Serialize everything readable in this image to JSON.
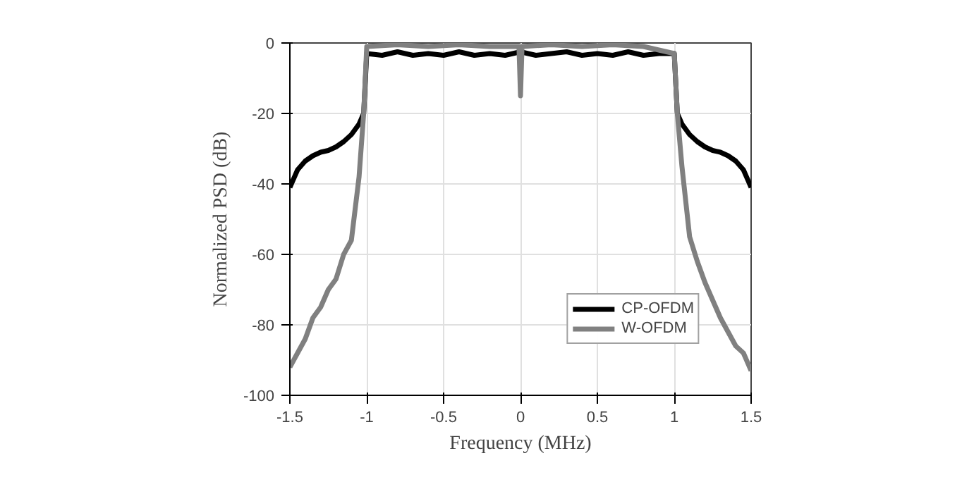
{
  "chart_data": {
    "type": "line",
    "xlabel": "Frequency (MHz)",
    "ylabel": "Normalized PSD (dB)",
    "xlim": [
      -1.5,
      1.5
    ],
    "ylim": [
      -100,
      0
    ],
    "xticks": [
      -1.5,
      -1,
      -0.5,
      0,
      0.5,
      1,
      1.5
    ],
    "yticks": [
      -100,
      -80,
      -60,
      -40,
      -20,
      0
    ],
    "grid": true,
    "legend": "bottom right",
    "line_style": "solid",
    "series": [
      {
        "name": "CP-OFDM",
        "color": "#000000",
        "x": [
          -1.5,
          -1.45,
          -1.4,
          -1.35,
          -1.3,
          -1.25,
          -1.2,
          -1.15,
          -1.1,
          -1.05,
          -1.02,
          -1.0,
          -0.9,
          -0.8,
          -0.7,
          -0.6,
          -0.5,
          -0.4,
          -0.3,
          -0.2,
          -0.1,
          0,
          0.1,
          0.2,
          0.3,
          0.4,
          0.5,
          0.6,
          0.7,
          0.8,
          0.9,
          1.0,
          1.02,
          1.05,
          1.1,
          1.15,
          1.2,
          1.25,
          1.3,
          1.35,
          1.4,
          1.45,
          1.5
        ],
        "values": [
          -41,
          -36,
          -33.5,
          -32,
          -31,
          -30.5,
          -29.5,
          -28,
          -26,
          -23,
          -20,
          -3,
          -3.5,
          -2.5,
          -3.5,
          -3,
          -3.5,
          -2.5,
          -3.5,
          -3,
          -3.5,
          -2.5,
          -3.5,
          -3,
          -2.5,
          -3.5,
          -3,
          -3.5,
          -2.5,
          -3.5,
          -3,
          -3,
          -20,
          -23,
          -26,
          -28,
          -29.5,
          -30.5,
          -31,
          -32,
          -33.5,
          -36,
          -41
        ]
      },
      {
        "name": "W-OFDM",
        "color": "#808080",
        "x": [
          -1.5,
          -1.45,
          -1.4,
          -1.35,
          -1.3,
          -1.25,
          -1.2,
          -1.15,
          -1.1,
          -1.05,
          -1.02,
          -1.0,
          -0.8,
          -0.6,
          -0.4,
          -0.2,
          -0.01,
          0,
          0.01,
          0.2,
          0.4,
          0.6,
          0.8,
          1.0,
          1.02,
          1.05,
          1.1,
          1.15,
          1.2,
          1.25,
          1.3,
          1.35,
          1.4,
          1.45,
          1.5
        ],
        "values": [
          -92,
          -88,
          -84,
          -78,
          -75,
          -70,
          -67,
          -60,
          -56,
          -38,
          -20,
          -1,
          -0.5,
          -1,
          -0.5,
          -1,
          -1,
          -15,
          -1,
          -0.5,
          -1,
          -0.5,
          -1,
          -3,
          -20,
          -35,
          -55,
          -62,
          -68,
          -73,
          -78,
          -82,
          -86,
          -88,
          -93
        ]
      }
    ]
  }
}
